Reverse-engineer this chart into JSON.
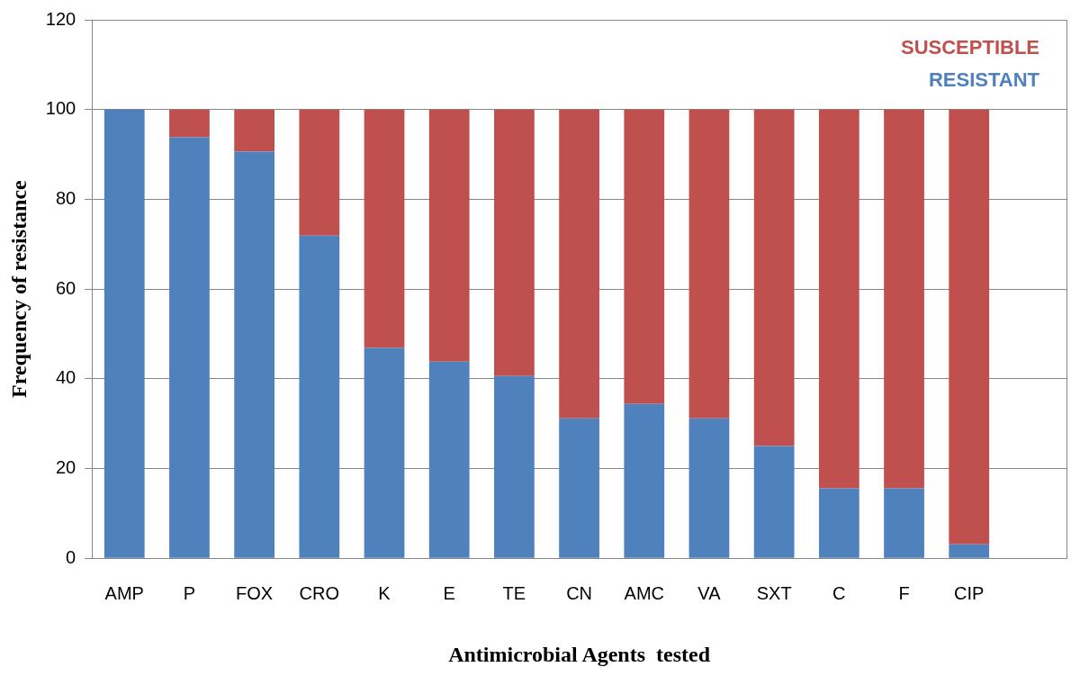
{
  "chart_data": {
    "type": "bar",
    "stacked": true,
    "xlabel": "Antimicrobial Agents  tested",
    "ylabel": "Frequency of resistance",
    "categories": [
      "AMP",
      "P",
      "FOX",
      "CRO",
      "K",
      "E",
      "TE",
      "CN",
      "AMC",
      "VA",
      "SXT",
      "C",
      "F",
      "CIP",
      null
    ],
    "series": [
      {
        "name": "RESISTANT",
        "color": "#4f81bd",
        "values": [
          100,
          93.8,
          90.6,
          71.9,
          46.9,
          43.8,
          40.6,
          31.2,
          34.4,
          31.2,
          25,
          15.6,
          15.6,
          3.1,
          null
        ]
      },
      {
        "name": "SUSCEPTIBLE",
        "color": "#c0504d",
        "values": [
          0,
          6.2,
          9.4,
          28.1,
          53.1,
          56.2,
          59.4,
          68.8,
          65.6,
          68.8,
          75,
          84.4,
          84.4,
          96.9,
          null
        ]
      }
    ],
    "ylim": [
      0,
      120
    ],
    "yticks": [
      0,
      20,
      40,
      60,
      80,
      100,
      120
    ],
    "grid": "y",
    "legend": "top right"
  }
}
